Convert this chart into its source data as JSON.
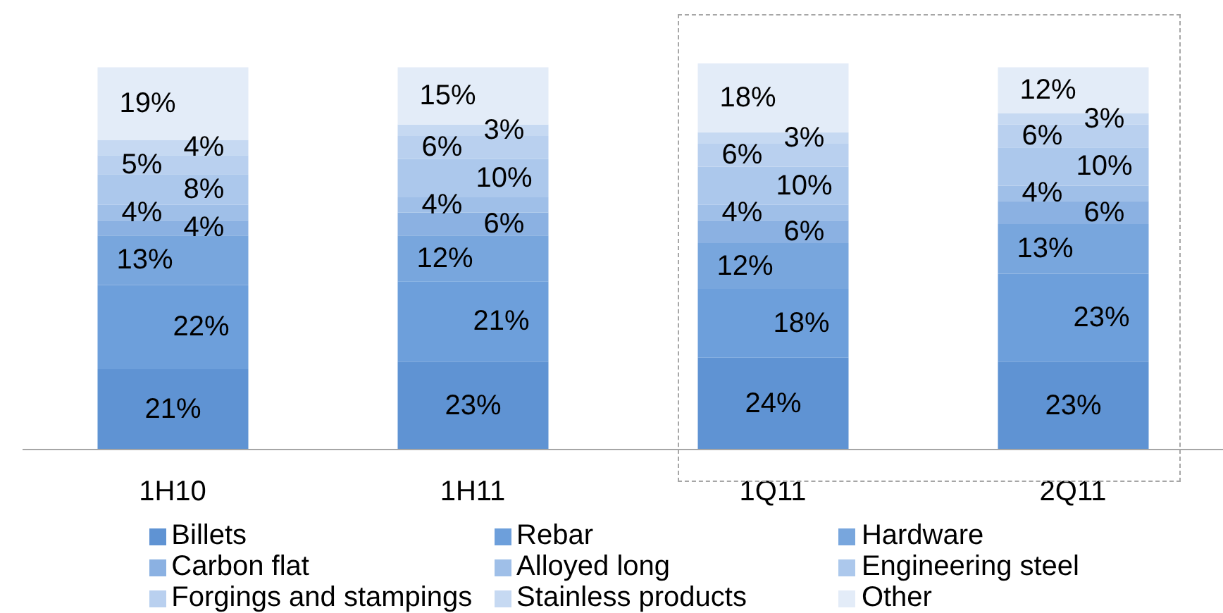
{
  "chart_data": {
    "type": "bar",
    "stacked": true,
    "legend": "bottom",
    "categories": [
      "1H10",
      "1H11",
      "1Q11",
      "2Q11"
    ],
    "series": [
      {
        "name": "Billets",
        "color": "#5f93d3",
        "values": [
          21,
          23,
          24,
          23
        ],
        "value_labels": [
          "21%",
          "23%",
          "24%",
          "23%"
        ]
      },
      {
        "name": "Rebar",
        "color": "#6d9fdb",
        "values": [
          22,
          21,
          18,
          23
        ],
        "value_labels": [
          "22%",
          "21%",
          "18%",
          "23%"
        ]
      },
      {
        "name": "Hardware",
        "color": "#78a6dd",
        "values": [
          13,
          12,
          12,
          13
        ],
        "value_labels": [
          "13%",
          "12%",
          "12%",
          "13%"
        ]
      },
      {
        "name": "Carbon flat",
        "color": "#8bb1e2",
        "values": [
          4,
          6,
          6,
          6
        ],
        "value_labels": [
          "4%",
          "6%",
          "6%",
          "6%"
        ]
      },
      {
        "name": "Alloyed long",
        "color": "#9fbfe8",
        "values": [
          4,
          4,
          4,
          4
        ],
        "value_labels": [
          "4%",
          "4%",
          "4%",
          "4%"
        ]
      },
      {
        "name": "Engineering steel",
        "color": "#acc8ec",
        "values": [
          8,
          10,
          10,
          10
        ],
        "value_labels": [
          "8%",
          "10%",
          "10%",
          "10%"
        ]
      },
      {
        "name": "Forgings and stampings",
        "color": "#b9d0ef",
        "values": [
          5,
          6,
          6,
          6
        ],
        "value_labels": [
          "5%",
          "6%",
          "6%",
          "6%"
        ]
      },
      {
        "name": "Stainless products",
        "color": "#c6d9f2",
        "values": [
          4,
          3,
          3,
          3
        ],
        "value_labels": [
          "4%",
          "3%",
          "3%",
          "3%"
        ]
      },
      {
        "name": "Other",
        "color": "#e3ecf8",
        "values": [
          19,
          15,
          18,
          12
        ],
        "value_labels": [
          "19%",
          "15%",
          "18%",
          "12%"
        ]
      }
    ]
  }
}
